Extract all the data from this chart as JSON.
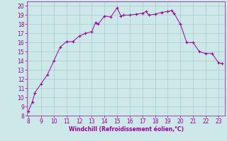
{
  "x": [
    8,
    8.3,
    8.5,
    9.0,
    9.5,
    10.0,
    10.5,
    11.0,
    11.5,
    12.0,
    12.5,
    13.0,
    13.3,
    13.5,
    14.0,
    14.5,
    15.0,
    15.3,
    15.5,
    16.0,
    16.5,
    17.0,
    17.3,
    17.5,
    18.0,
    18.5,
    19.0,
    19.3,
    19.5,
    20.0,
    20.5,
    21.0,
    21.5,
    22.0,
    22.5,
    23.0,
    23.3
  ],
  "y": [
    8.5,
    9.5,
    10.5,
    11.5,
    12.5,
    14.0,
    15.5,
    16.1,
    16.1,
    16.7,
    17.0,
    17.2,
    18.2,
    18.0,
    18.9,
    18.8,
    19.8,
    18.9,
    19.0,
    19.0,
    19.1,
    19.2,
    19.4,
    19.0,
    19.1,
    19.3,
    19.4,
    19.5,
    19.2,
    18.0,
    16.0,
    16.0,
    15.0,
    14.8,
    14.8,
    13.8,
    13.7
  ],
  "line_color": "#990099",
  "marker": "+",
  "marker_size": 3,
  "background_color": "#cce8e8",
  "grid_color": "#aacccc",
  "xlabel": "Windchill (Refroidissement éolien,°C)",
  "xlabel_color": "#990099",
  "tick_color": "#990099",
  "xlim": [
    7.9,
    23.5
  ],
  "ylim": [
    8.0,
    20.5
  ],
  "xticks": [
    8,
    9,
    10,
    11,
    12,
    13,
    14,
    15,
    16,
    17,
    18,
    19,
    20,
    21,
    22,
    23
  ],
  "yticks": [
    8,
    9,
    10,
    11,
    12,
    13,
    14,
    15,
    16,
    17,
    18,
    19,
    20
  ]
}
